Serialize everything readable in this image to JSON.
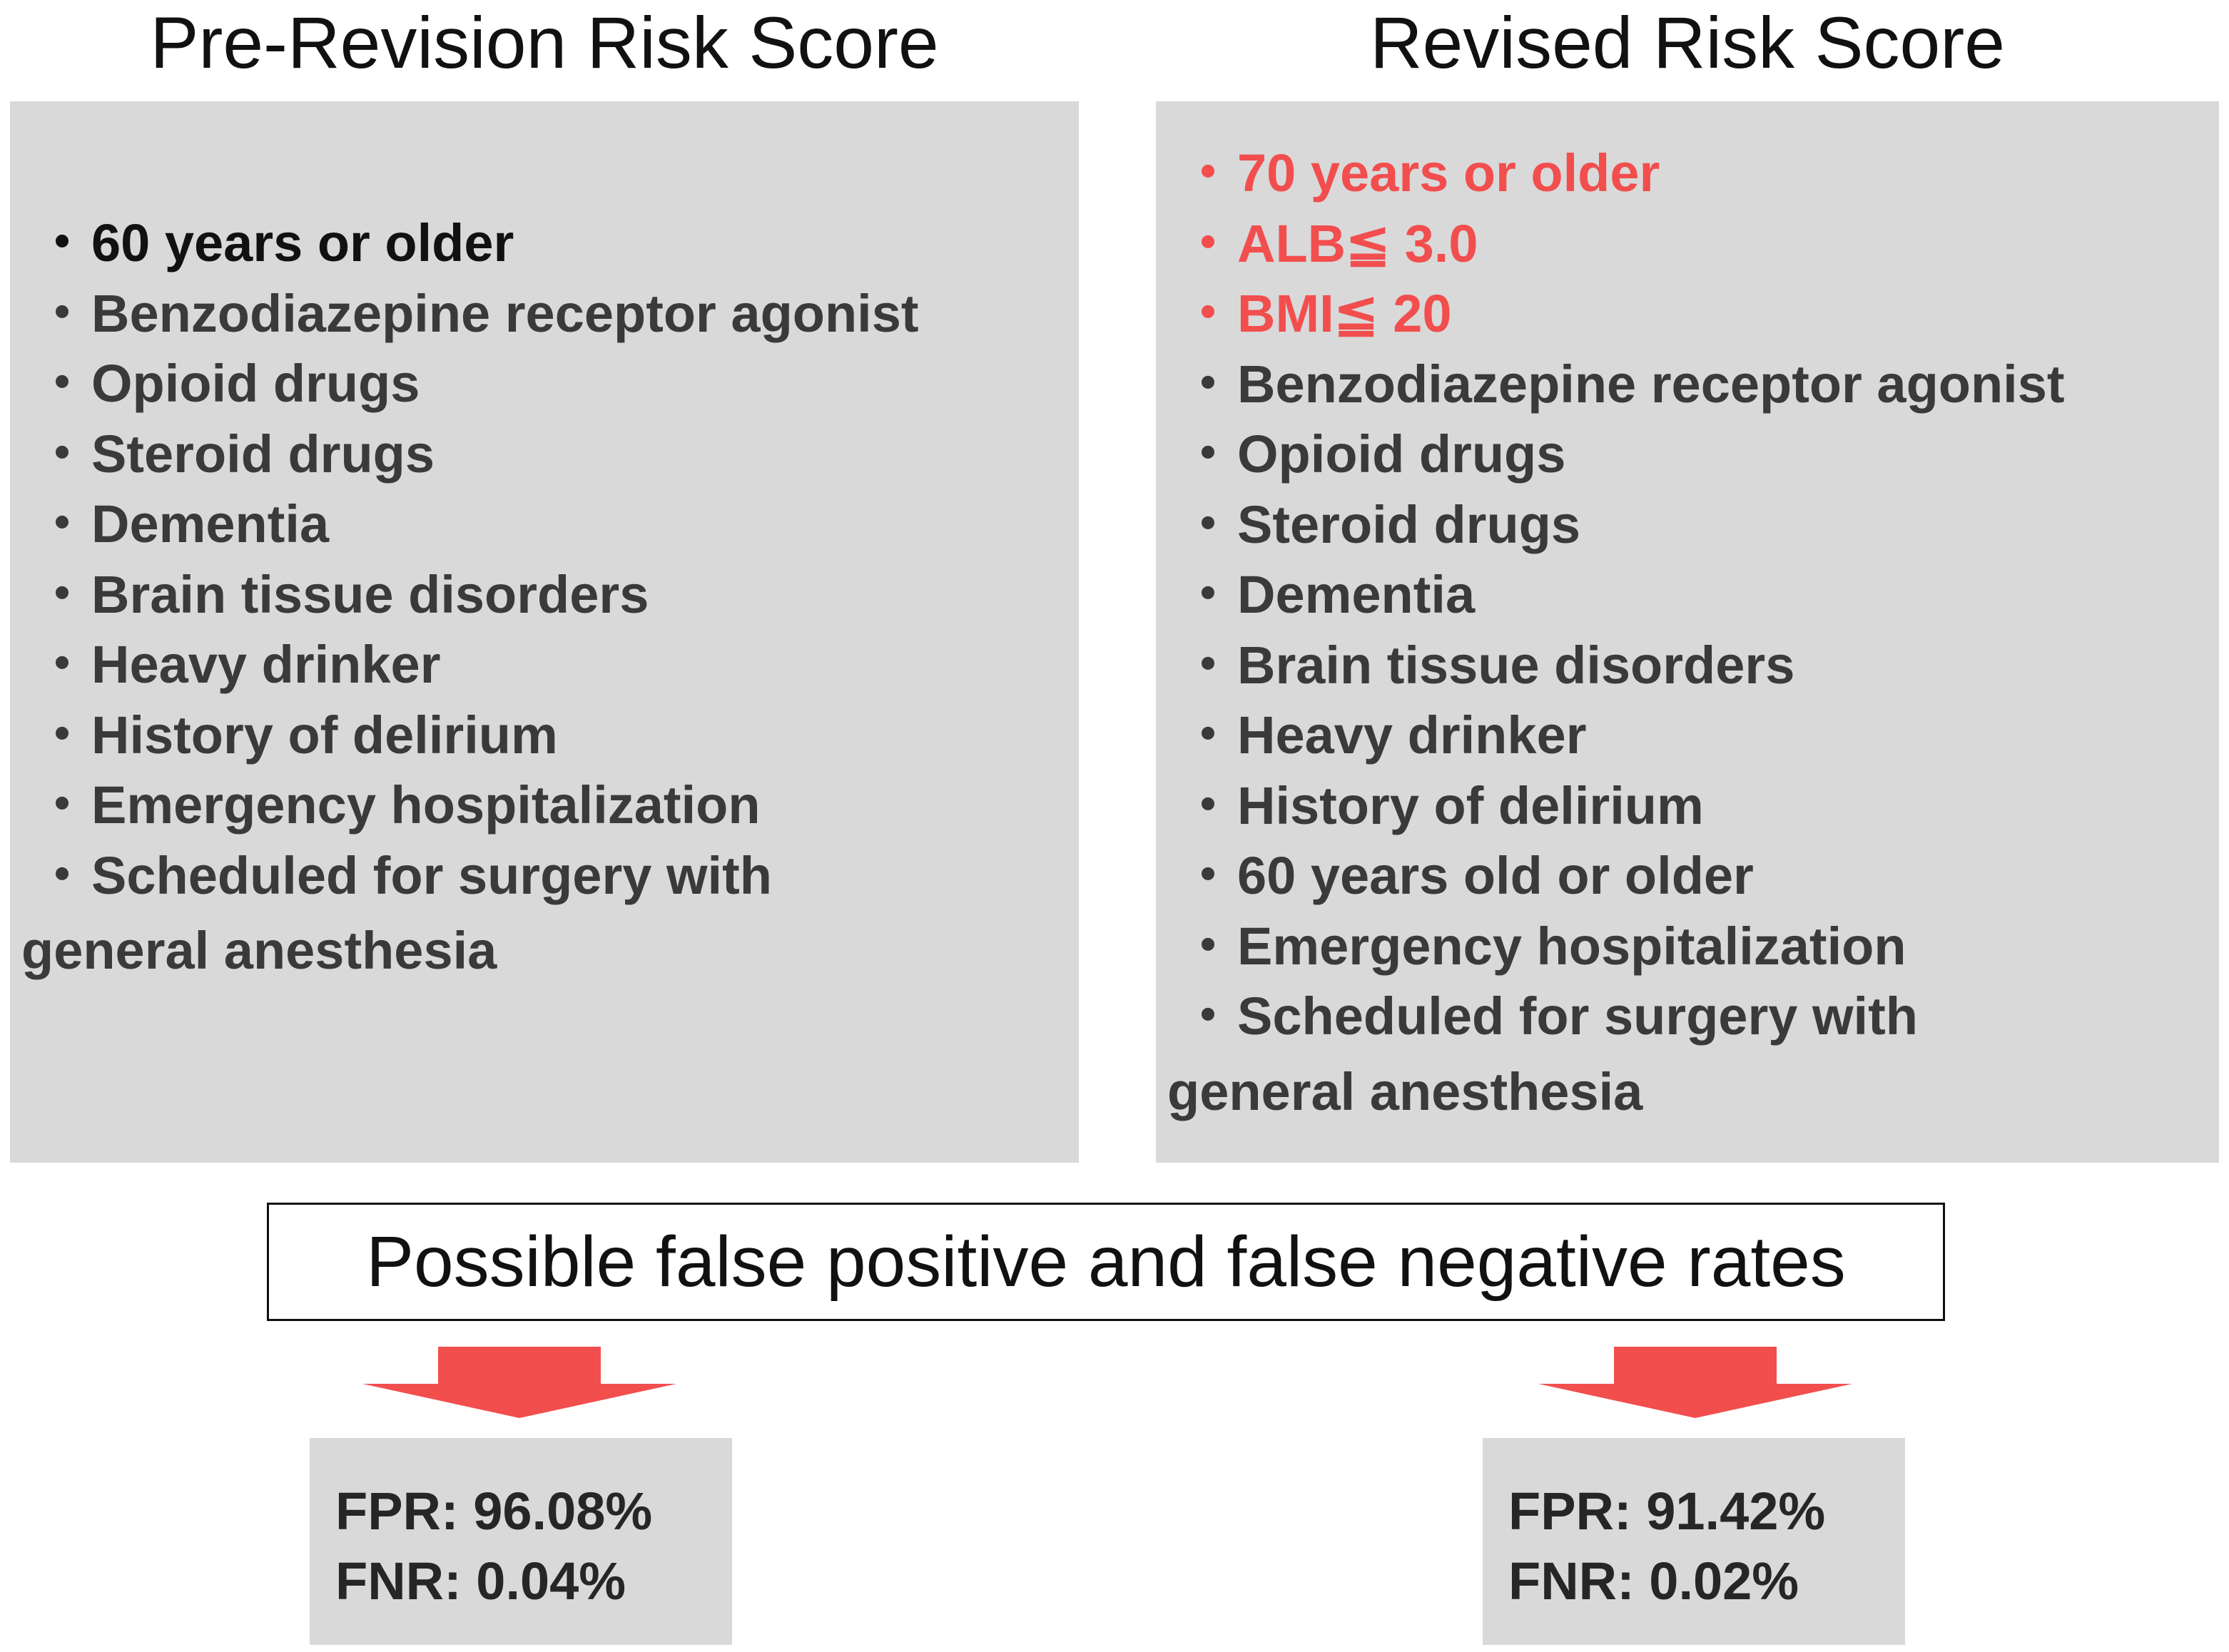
{
  "titles": {
    "pre": "Pre-Revision Risk Score",
    "revised": "Revised Risk Score"
  },
  "bullet": "・",
  "pre_items": [
    "60 years or older",
    "Benzodiazepine receptor agonist",
    "Opioid drugs",
    "Steroid drugs",
    "Dementia",
    "Brain tissue disorders",
    "Heavy drinker",
    "History of delirium",
    "Emergency hospitalization",
    "Scheduled for surgery with",
    "general anesthesia"
  ],
  "revised_items": [
    "70 years or older",
    "ALB≦ 3.0",
    "BMI≦ 20",
    "Benzodiazepine receptor agonist",
    "Opioid drugs",
    "Steroid drugs",
    "Dementia",
    "Brain tissue disorders",
    "Heavy drinker",
    "History of delirium",
    "60 years old or older",
    "Emergency hospitalization",
    "Scheduled for surgery with",
    "general anesthesia"
  ],
  "metric_label": "Possible false positive and false negative rates",
  "pre_rates": {
    "fpr": "FPR: 96.08%",
    "fnr": "FNR: 0.04%"
  },
  "revised_rates": {
    "fpr": "FPR: 91.42%",
    "fnr": "FNR: 0.02%"
  },
  "colors": {
    "highlight": "#f24e4e",
    "panel": "#d9d9d9",
    "arrow": "#f24e4e",
    "text": "#262626"
  }
}
